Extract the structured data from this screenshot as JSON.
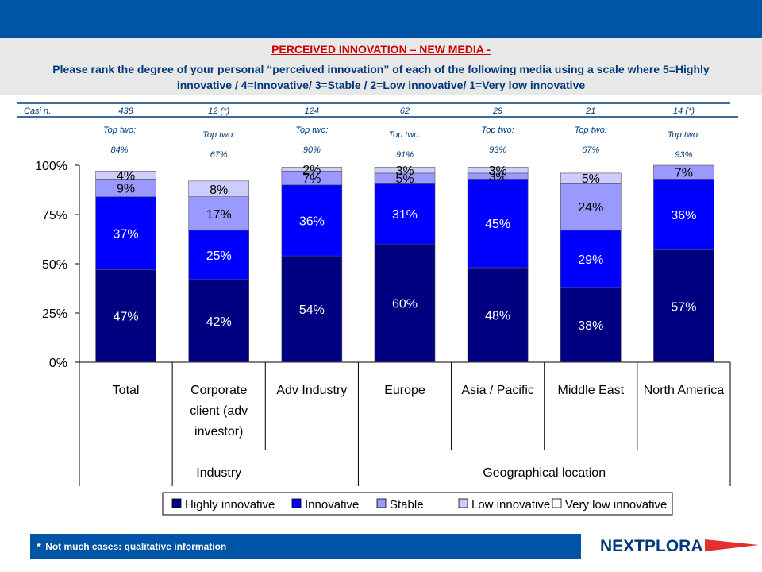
{
  "header": {
    "title": "PERCEIVED INNOVATION – NEW MEDIA -",
    "subtitle_line1": "Please rank the degree of your personal “perceived innovation” of each of the following media using a scale where  5=Highly",
    "subtitle_line2": "innovative / 4=Innovative/ 3=Stable / 2=Low innovative/ 1=Very low innovative"
  },
  "cases": {
    "label": "Casi n.",
    "values": [
      "438",
      "12 (*)",
      "124",
      "62",
      "29",
      "21",
      "14 (*)"
    ]
  },
  "top_two": {
    "label": "Top two:",
    "values": [
      "84%",
      "67%",
      "90%",
      "91%",
      "93%",
      "67%",
      "93%"
    ]
  },
  "groups": [
    {
      "label": "Industry"
    },
    {
      "label": "Geographical location"
    }
  ],
  "colors": {
    "highly": "#000080",
    "innovative": "#0000ff",
    "stable": "#9999ff",
    "low": "#ccccff",
    "very_low": "#ffffff",
    "header_blue": "#0054a6",
    "title_red": "#cc0000",
    "subtitle_blue": "#003a7a"
  },
  "chart_data": {
    "type": "bar",
    "stacked": true,
    "categories": [
      "Total",
      "Corporate client (adv investor)",
      "Adv Industry",
      "Europe",
      "Asia / Pacific",
      "Middle East",
      "North America"
    ],
    "category_lines": [
      [
        "Total"
      ],
      [
        "Corporate",
        "client (adv",
        "investor)"
      ],
      [
        "Adv Industry"
      ],
      [
        "Europe"
      ],
      [
        "Asia / Pacific"
      ],
      [
        "Middle East"
      ],
      [
        "North America"
      ]
    ],
    "series": [
      {
        "name": "Highly innovative",
        "values": [
          47,
          42,
          54,
          60,
          48,
          38,
          57
        ],
        "labels": [
          "47%",
          "42%",
          "54%",
          "60%",
          "48%",
          "38%",
          "57%"
        ]
      },
      {
        "name": "Innovative",
        "values": [
          37,
          25,
          36,
          31,
          45,
          29,
          36
        ],
        "labels": [
          "37%",
          "25%",
          "36%",
          "31%",
          "45%",
          "29%",
          "36%"
        ]
      },
      {
        "name": "Stable",
        "values": [
          9,
          17,
          7,
          5,
          3,
          24,
          7
        ],
        "labels": [
          "9%",
          "17%",
          "7%",
          "5%",
          "3%",
          "24%",
          "7%"
        ]
      },
      {
        "name": "Low innovative",
        "values": [
          4,
          8,
          2,
          3,
          3,
          5,
          0
        ],
        "labels": [
          "4%",
          "8%",
          "2%",
          "3%",
          "3%",
          "5%",
          ""
        ]
      },
      {
        "name": "Very low innovative",
        "values": [
          0,
          0,
          0,
          0,
          0,
          0,
          0
        ],
        "labels": [
          "",
          "",
          "",
          "",
          "",
          "",
          ""
        ]
      }
    ],
    "yticks": [
      "0%",
      "25%",
      "50%",
      "75%",
      "100%"
    ],
    "ylim": [
      0,
      100
    ],
    "legend": "bottom"
  },
  "footer": {
    "star": "*",
    "note": "Not much cases: qualitative information",
    "logo": "NEXTPLORA"
  }
}
